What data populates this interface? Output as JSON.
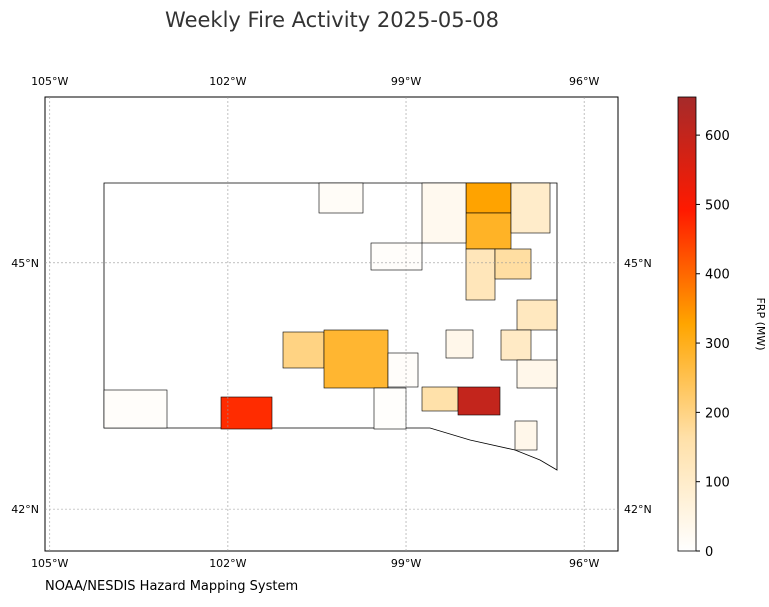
{
  "chart_data": {
    "type": "choropleth",
    "title": "Weekly Fire Activity 2025-05-08",
    "source": "NOAA/NESDIS Hazard Mapping System",
    "xlim": [
      -105.08,
      -95.43
    ],
    "ylim": [
      41.49,
      47.02
    ],
    "xticks": [
      {
        "value": -105,
        "label": "105°W"
      },
      {
        "value": -102,
        "label": "102°W"
      },
      {
        "value": -99,
        "label": "99°W"
      },
      {
        "value": -96,
        "label": "96°W"
      }
    ],
    "yticks": [
      {
        "value": 42,
        "label": "42°N"
      },
      {
        "value": 45,
        "label": "45°N"
      }
    ],
    "grid": true,
    "values": [
      10,
      470,
      200,
      280,
      330,
      290,
      100,
      30,
      15,
      10,
      130,
      170,
      120,
      110,
      40,
      160,
      600,
      40,
      40,
      10,
      5
    ],
    "colorbar": {
      "label": "FRP (MW)",
      "lim": [
        0,
        655
      ],
      "ticks": [
        0,
        100,
        200,
        300,
        400,
        500,
        600
      ],
      "colors": [
        "#ffffff",
        "#ffe0a8",
        "#ffa500",
        "#ff1a00",
        "#a52a2a"
      ]
    }
  }
}
